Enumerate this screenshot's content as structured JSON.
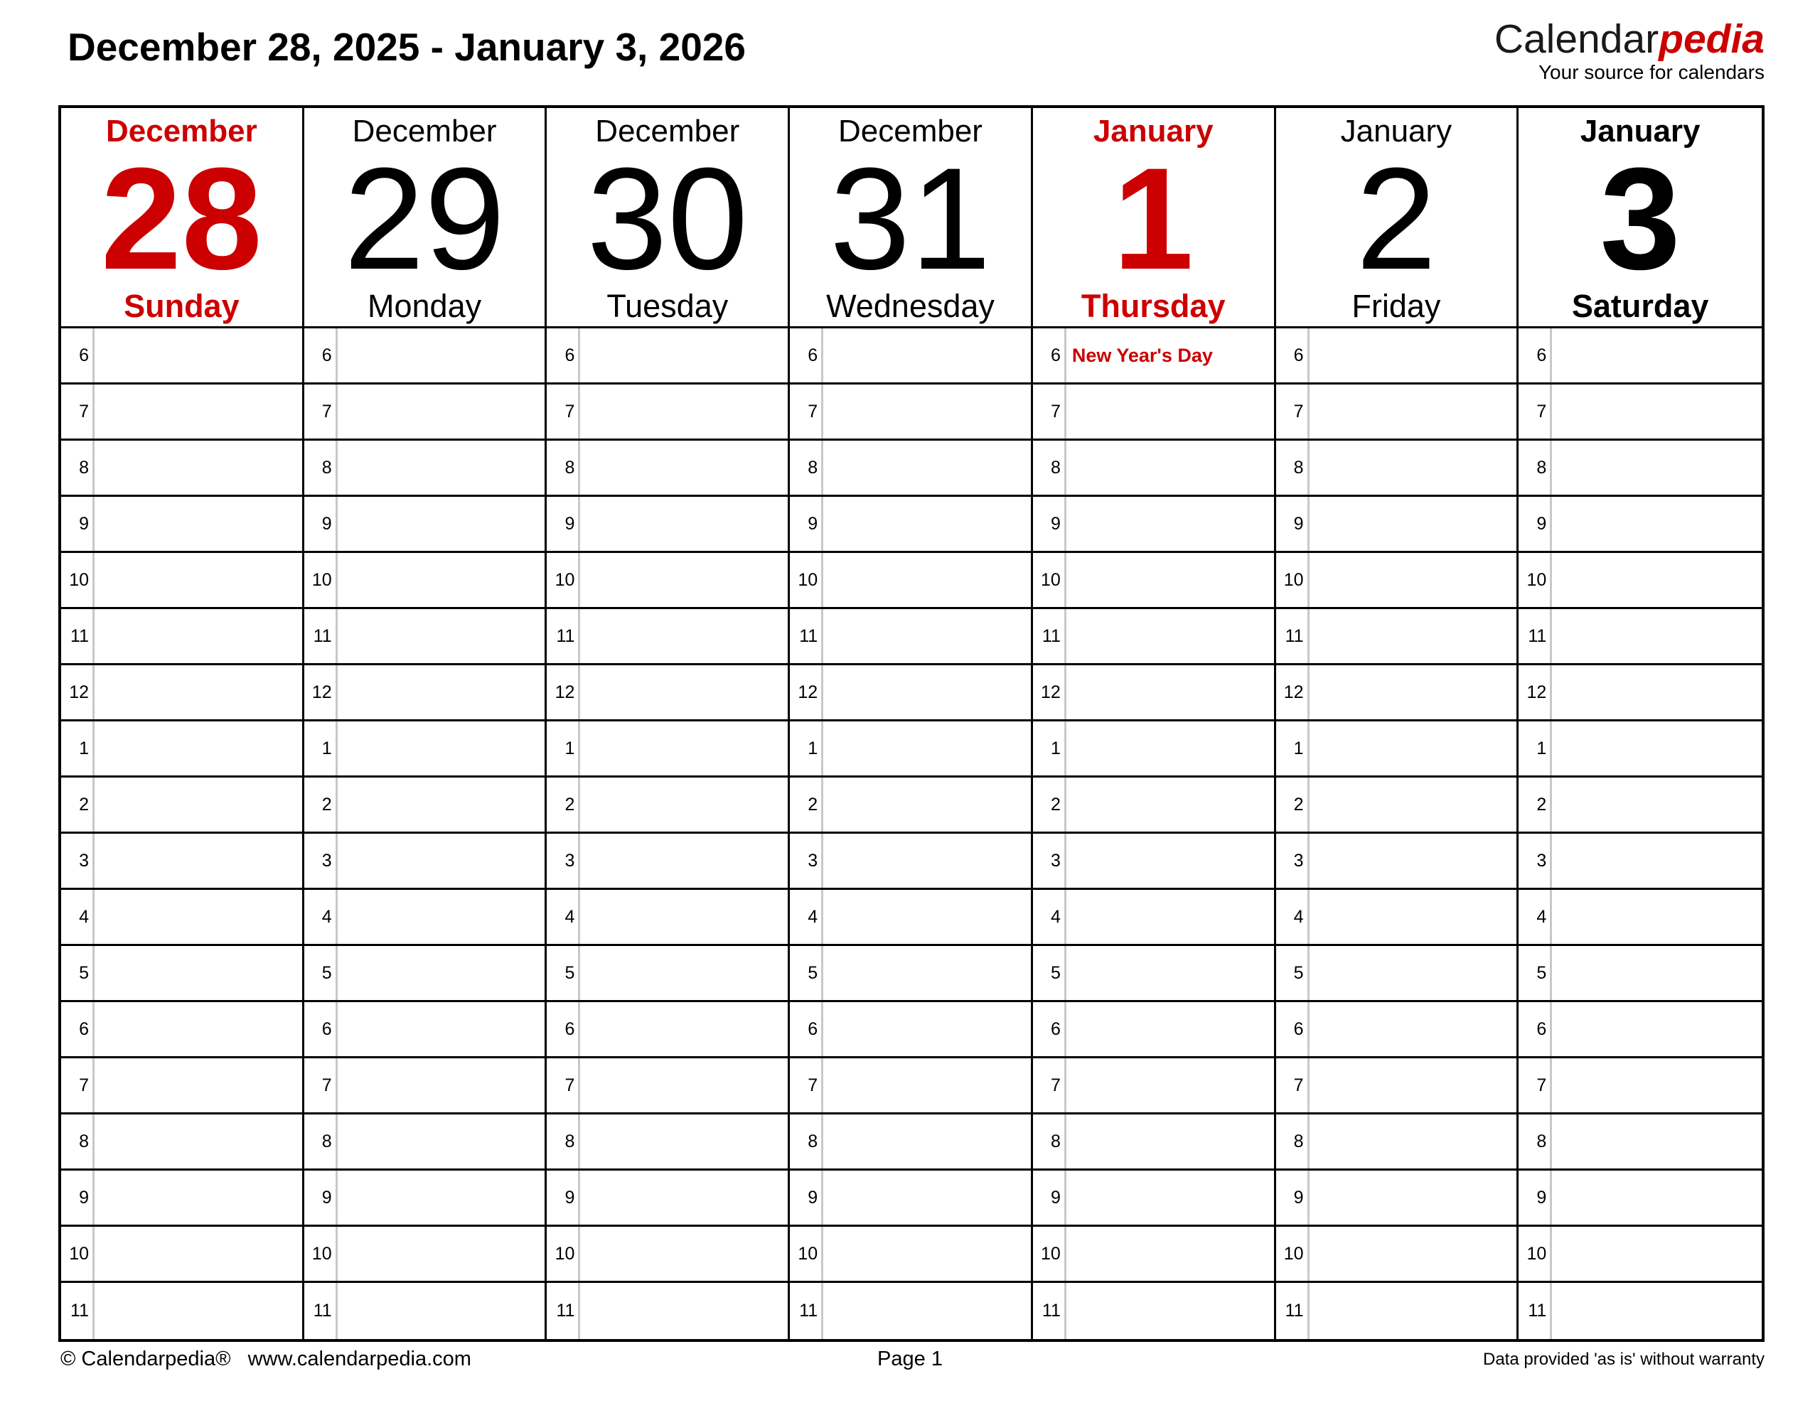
{
  "title": "December 28, 2025 - January 3, 2026",
  "logo": {
    "name_black": "Calendar",
    "name_red": "pedia",
    "tagline": "Your source for calendars"
  },
  "colors": {
    "accent_red": "#cc0000",
    "grid_black": "#000000",
    "hour_divider_gray": "#c8c8c8"
  },
  "hours": [
    "6",
    "7",
    "8",
    "9",
    "10",
    "11",
    "12",
    "1",
    "2",
    "3",
    "4",
    "5",
    "6",
    "7",
    "8",
    "9",
    "10",
    "11"
  ],
  "days": [
    {
      "month": "December",
      "day": "28",
      "weekday": "Sunday",
      "style": "red",
      "events": []
    },
    {
      "month": "December",
      "day": "29",
      "weekday": "Monday",
      "style": "normal",
      "events": []
    },
    {
      "month": "December",
      "day": "30",
      "weekday": "Tuesday",
      "style": "normal",
      "events": []
    },
    {
      "month": "December",
      "day": "31",
      "weekday": "Wednesday",
      "style": "normal",
      "events": []
    },
    {
      "month": "January",
      "day": "1",
      "weekday": "Thursday",
      "style": "red",
      "events": [
        {
          "hour_index": 0,
          "label": "New Year's Day"
        }
      ]
    },
    {
      "month": "January",
      "day": "2",
      "weekday": "Friday",
      "style": "normal",
      "events": []
    },
    {
      "month": "January",
      "day": "3",
      "weekday": "Saturday",
      "style": "bold",
      "events": []
    }
  ],
  "footer": {
    "left": "© Calendarpedia®   www.calendarpedia.com",
    "center": "Page 1",
    "right": "Data provided 'as is' without warranty"
  }
}
